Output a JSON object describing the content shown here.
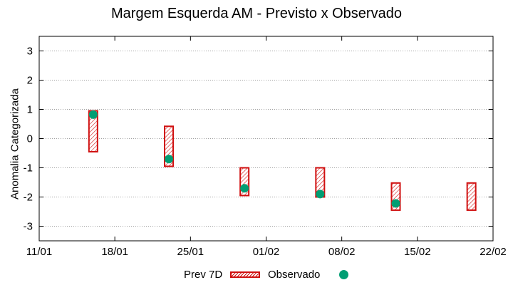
{
  "chart_data": {
    "type": "range-bar-scatter",
    "title": "Margem Esquerda AM - Previsto x Observado",
    "xlabel": "",
    "ylabel": "Anomalia Categorizada",
    "ylim": [
      -3.5,
      3.5
    ],
    "yticks": [
      -3,
      -2,
      -1,
      0,
      1,
      2,
      3
    ],
    "x_range_days": [
      0,
      42
    ],
    "xticks": [
      {
        "day": 0,
        "label": "11/01"
      },
      {
        "day": 7,
        "label": "18/01"
      },
      {
        "day": 14,
        "label": "25/01"
      },
      {
        "day": 21,
        "label": "01/02"
      },
      {
        "day": 28,
        "label": "08/02"
      },
      {
        "day": 35,
        "label": "15/02"
      },
      {
        "day": 42,
        "label": "22/02"
      }
    ],
    "grid": true,
    "series": [
      {
        "name": "Prev 7D",
        "kind": "range",
        "color": "#d01010",
        "points": [
          {
            "day": 5,
            "low": -0.45,
            "high": 0.95
          },
          {
            "day": 12,
            "low": -0.95,
            "high": 0.42
          },
          {
            "day": 19,
            "low": -1.95,
            "high": -1.0
          },
          {
            "day": 26,
            "low": -2.0,
            "high": -1.0
          },
          {
            "day": 33,
            "low": -2.45,
            "high": -1.52
          },
          {
            "day": 40,
            "low": -2.45,
            "high": -1.52
          }
        ]
      },
      {
        "name": "Observado",
        "kind": "point",
        "color": "#009e73",
        "points": [
          {
            "day": 5,
            "value": 0.82
          },
          {
            "day": 12,
            "value": -0.7
          },
          {
            "day": 19,
            "value": -1.7
          },
          {
            "day": 26,
            "value": -1.9
          },
          {
            "day": 33,
            "value": -2.22
          }
        ]
      }
    ],
    "legend": {
      "position": "bottom-center"
    }
  }
}
